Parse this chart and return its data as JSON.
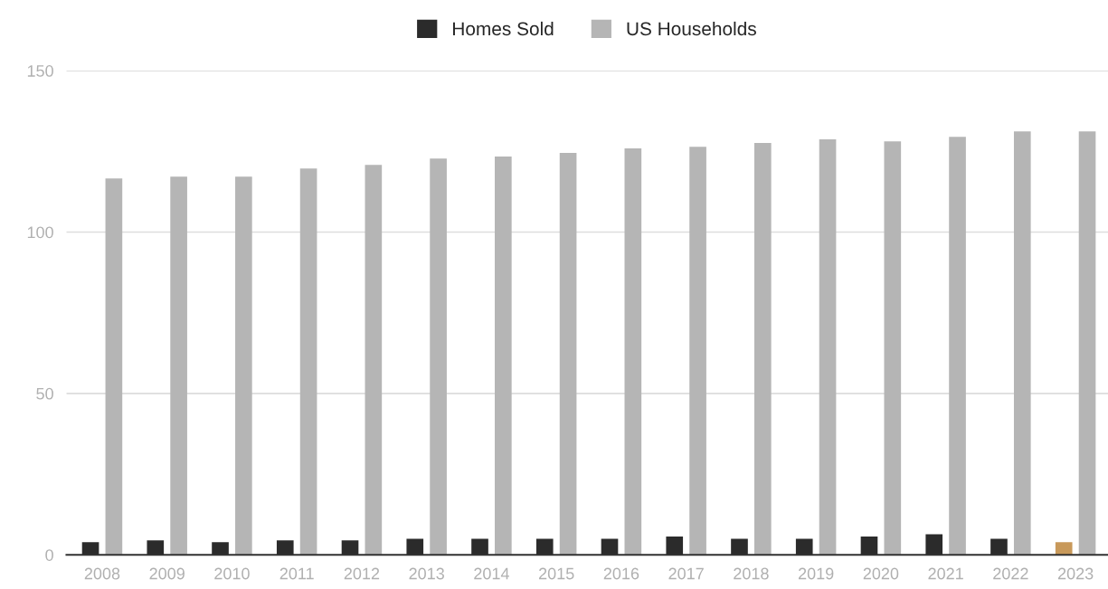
{
  "chart_data": {
    "type": "bar",
    "categories": [
      "2008",
      "2009",
      "2010",
      "2011",
      "2012",
      "2013",
      "2014",
      "2015",
      "2016",
      "2017",
      "2018",
      "2019",
      "2020",
      "2021",
      "2022",
      "2023"
    ],
    "series": [
      {
        "name": "Homes Sold",
        "color": "#2b2b2b",
        "colors": [
          "#2b2b2b",
          "#2b2b2b",
          "#2b2b2b",
          "#2b2b2b",
          "#2b2b2b",
          "#2b2b2b",
          "#2b2b2b",
          "#2b2b2b",
          "#2b2b2b",
          "#2b2b2b",
          "#2b2b2b",
          "#2b2b2b",
          "#2b2b2b",
          "#2b2b2b",
          "#2b2b2b",
          "#c8995a"
        ],
        "values": [
          3.9,
          4.5,
          3.9,
          4.5,
          4.5,
          5.0,
          5.0,
          5.0,
          5.0,
          5.7,
          5.0,
          5.0,
          5.7,
          6.4,
          5.0,
          3.9
        ]
      },
      {
        "name": "US Households",
        "color": "#b5b5b5",
        "values": [
          116.6,
          117.2,
          117.2,
          119.7,
          120.8,
          122.8,
          123.4,
          124.5,
          125.9,
          126.4,
          127.6,
          128.7,
          128.1,
          129.5,
          131.2,
          131.2
        ]
      }
    ],
    "ylim": [
      0,
      150
    ],
    "yticks": [
      0,
      50,
      100,
      150
    ],
    "grid": "y",
    "legend": "top"
  }
}
